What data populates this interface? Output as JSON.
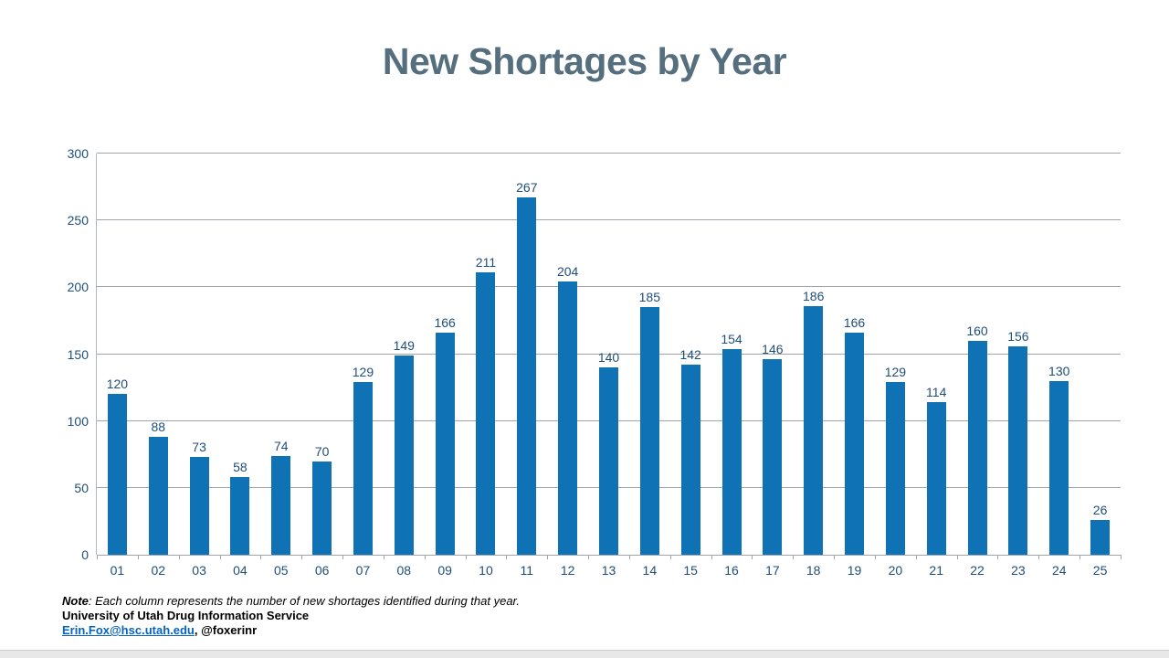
{
  "slide": {
    "title": "New Shortages by Year"
  },
  "footer": {
    "note_label": "Note",
    "note_rest": ": Each column represents the number of new shortages identified during that year.",
    "org_line": "University of Utah Drug Information Service",
    "email_link": "Erin.Fox@hsc.utah.edu",
    "contact_rest": ", @foxerinr"
  },
  "chart_data": {
    "type": "bar",
    "title": "New Shortages by Year",
    "categories": [
      "01",
      "02",
      "03",
      "04",
      "05",
      "06",
      "07",
      "08",
      "09",
      "10",
      "11",
      "12",
      "13",
      "14",
      "15",
      "16",
      "17",
      "18",
      "19",
      "20",
      "21",
      "22",
      "23",
      "24",
      "25"
    ],
    "values": [
      120,
      88,
      73,
      58,
      74,
      70,
      129,
      149,
      166,
      211,
      267,
      204,
      140,
      185,
      142,
      154,
      146,
      186,
      166,
      129,
      114,
      160,
      156,
      130,
      26
    ],
    "xlabel": "",
    "ylabel": "",
    "ylim": [
      0,
      300
    ],
    "yticks": [
      0,
      50,
      100,
      150,
      200,
      250,
      300
    ],
    "grid": true,
    "legend": false,
    "value_labels": true,
    "bar_color": "#0e72b5",
    "chart_text_color": "#1f4e79",
    "gridline_color": "#a0a4ab"
  },
  "colors": {
    "title": "#566f7e",
    "bar": "#0e72b5",
    "chart_text": "#1f4e79",
    "gridline": "#a0a4ab",
    "link": "#0563c1",
    "bottom_strip": "#e8e8e8"
  }
}
